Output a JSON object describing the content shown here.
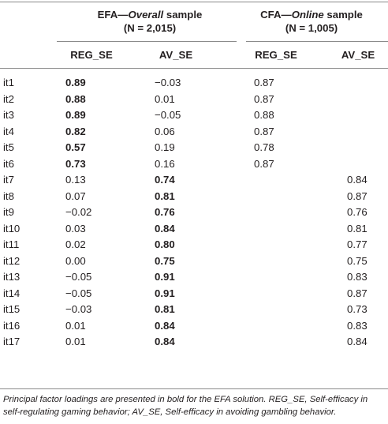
{
  "header": {
    "efa_title_prefix": "EFA—",
    "efa_title_italic": "Overall",
    "efa_title_suffix": " sample",
    "efa_n": "(N = 2,015)",
    "cfa_title_prefix": "CFA—",
    "cfa_title_italic": "Online",
    "cfa_title_suffix": " sample",
    "cfa_n": "(N = 1,005)"
  },
  "columns": [
    "REG_SE",
    "AV_SE",
    "REG_SE",
    "AV_SE"
  ],
  "rows": [
    {
      "item": "it1",
      "efa_reg": "0.89",
      "efa_av": "−0.03",
      "cfa_reg": "0.87",
      "cfa_av": "",
      "bold": "reg"
    },
    {
      "item": "it2",
      "efa_reg": "0.88",
      "efa_av": "0.01",
      "cfa_reg": "0.87",
      "cfa_av": "",
      "bold": "reg"
    },
    {
      "item": "it3",
      "efa_reg": "0.89",
      "efa_av": "−0.05",
      "cfa_reg": "0.88",
      "cfa_av": "",
      "bold": "reg"
    },
    {
      "item": "it4",
      "efa_reg": "0.82",
      "efa_av": "0.06",
      "cfa_reg": "0.87",
      "cfa_av": "",
      "bold": "reg"
    },
    {
      "item": "it5",
      "efa_reg": "0.57",
      "efa_av": "0.19",
      "cfa_reg": "0.78",
      "cfa_av": "",
      "bold": "reg"
    },
    {
      "item": "it6",
      "efa_reg": "0.73",
      "efa_av": "0.16",
      "cfa_reg": "0.87",
      "cfa_av": "",
      "bold": "reg"
    },
    {
      "item": "it7",
      "efa_reg": "0.13",
      "efa_av": "0.74",
      "cfa_reg": "",
      "cfa_av": "0.84",
      "bold": "av"
    },
    {
      "item": "it8",
      "efa_reg": "0.07",
      "efa_av": "0.81",
      "cfa_reg": "",
      "cfa_av": "0.87",
      "bold": "av"
    },
    {
      "item": "it9",
      "efa_reg": "−0.02",
      "efa_av": "0.76",
      "cfa_reg": "",
      "cfa_av": "0.76",
      "bold": "av"
    },
    {
      "item": "it10",
      "efa_reg": "0.03",
      "efa_av": "0.84",
      "cfa_reg": "",
      "cfa_av": "0.81",
      "bold": "av"
    },
    {
      "item": "it11",
      "efa_reg": "0.02",
      "efa_av": "0.80",
      "cfa_reg": "",
      "cfa_av": "0.77",
      "bold": "av"
    },
    {
      "item": "it12",
      "efa_reg": "0.00",
      "efa_av": "0.75",
      "cfa_reg": "",
      "cfa_av": "0.75",
      "bold": "av"
    },
    {
      "item": "it13",
      "efa_reg": "−0.05",
      "efa_av": "0.91",
      "cfa_reg": "",
      "cfa_av": "0.83",
      "bold": "av"
    },
    {
      "item": "it14",
      "efa_reg": "−0.05",
      "efa_av": "0.91",
      "cfa_reg": "",
      "cfa_av": "0.87",
      "bold": "av"
    },
    {
      "item": "it15",
      "efa_reg": "−0.03",
      "efa_av": "0.81",
      "cfa_reg": "",
      "cfa_av": "0.73",
      "bold": "av"
    },
    {
      "item": "it16",
      "efa_reg": "0.01",
      "efa_av": "0.84",
      "cfa_reg": "",
      "cfa_av": "0.83",
      "bold": "av"
    },
    {
      "item": "it17",
      "efa_reg": "0.01",
      "efa_av": "0.84",
      "cfa_reg": "",
      "cfa_av": "0.84",
      "bold": "av"
    }
  ],
  "note": "Principal factor loadings are presented in bold for the EFA solution. REG_SE, Self-efficacy in self-regulating gaming behavior; AV_SE, Self-efficacy in avoiding gambling behavior."
}
